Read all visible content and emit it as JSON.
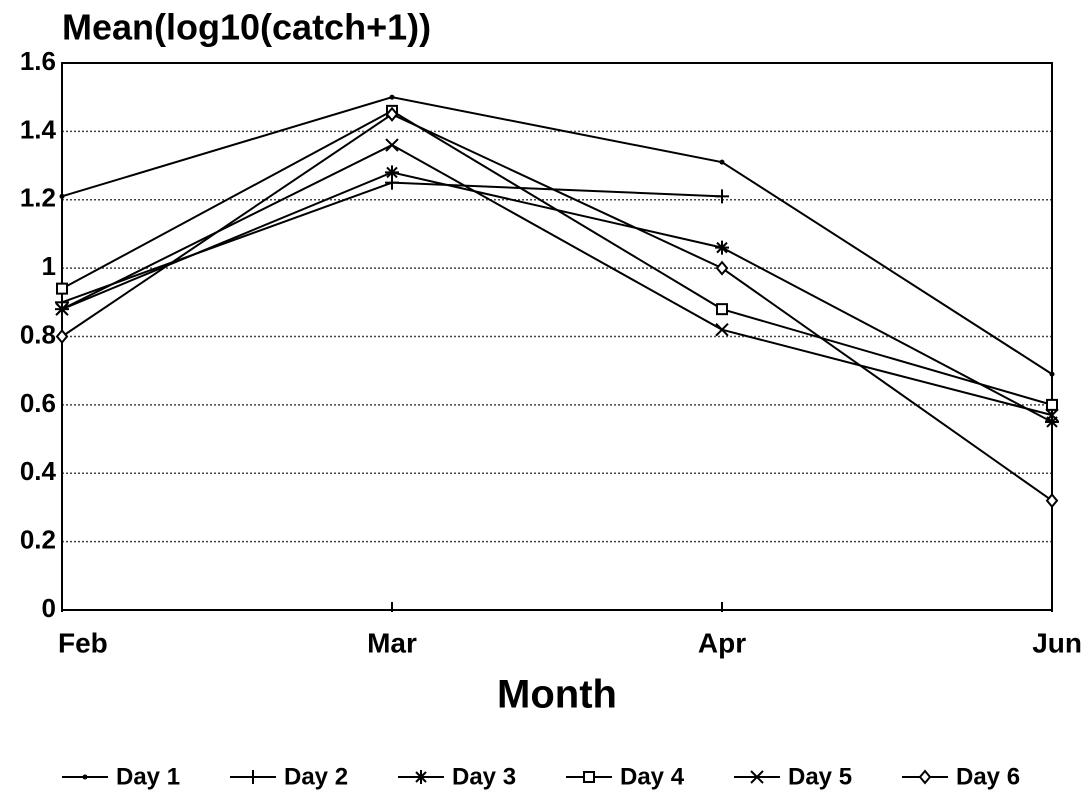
{
  "chart_data": {
    "type": "line",
    "title": "Mean(log10(catch+1))",
    "x_label": "Month",
    "categories": [
      "Feb",
      "Mar",
      "Apr",
      "Jun"
    ],
    "series": [
      {
        "name": "Day 1",
        "color": "#000000",
        "marker": "dot",
        "values": [
          1.21,
          1.5,
          1.31,
          0.69
        ]
      },
      {
        "name": "Day 2",
        "color": "#000000",
        "marker": "plus",
        "values": [
          0.9,
          1.25,
          1.21,
          null
        ]
      },
      {
        "name": "Day 3",
        "color": "#000000",
        "marker": "asterisk",
        "values": [
          0.88,
          1.28,
          1.06,
          0.55
        ]
      },
      {
        "name": "Day 4",
        "color": "#000000",
        "marker": "square",
        "values": [
          0.94,
          1.46,
          0.88,
          0.6
        ]
      },
      {
        "name": "Day 5",
        "color": "#000000",
        "marker": "x",
        "values": [
          0.88,
          1.36,
          0.82,
          0.57
        ]
      },
      {
        "name": "Day 6",
        "color": "#000000",
        "marker": "diamond",
        "values": [
          0.8,
          1.45,
          1.0,
          0.32
        ]
      }
    ],
    "ylim": [
      0,
      1.6
    ],
    "yticks": [
      0,
      0.2,
      0.4,
      0.6,
      0.8,
      1,
      1.2,
      1.4,
      1.6
    ],
    "grid": true,
    "legend": "bottom"
  }
}
